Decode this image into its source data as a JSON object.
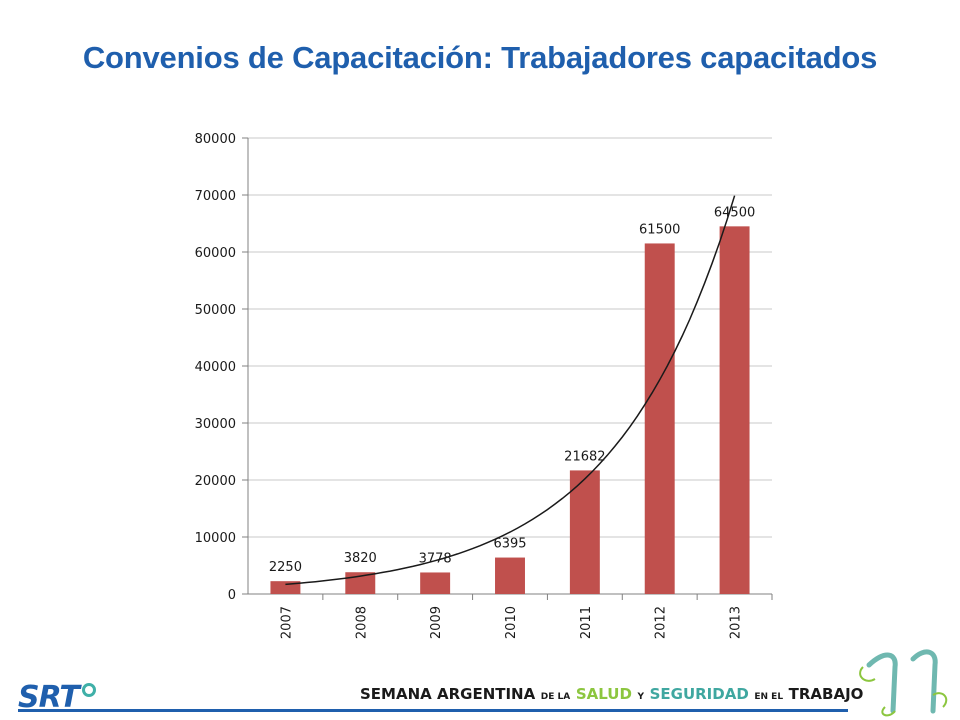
{
  "slide": {
    "title": "Convenios de Capacitación: Trabajadores capacitados"
  },
  "chart_data": {
    "type": "bar",
    "categories": [
      "2007",
      "2008",
      "2009",
      "2010",
      "2011",
      "2012",
      "2013"
    ],
    "values": [
      2250,
      3820,
      3778,
      6395,
      21682,
      61500,
      64500
    ],
    "data_labels": [
      "2250",
      "3820",
      "3778",
      "6395",
      "21682",
      "61500",
      "64500"
    ],
    "y_ticks": [
      "0",
      "10000",
      "20000",
      "30000",
      "40000",
      "50000",
      "60000",
      "70000",
      "80000"
    ],
    "ylim": [
      0,
      80000
    ],
    "trendline": "exponential",
    "grid": true,
    "legend": "none",
    "bar_color": "#c0504d",
    "title": "",
    "xlabel": "",
    "ylabel": ""
  },
  "footer": {
    "logo": "SRT",
    "banner": {
      "w1": "SEMANA ARGENTINA",
      "w2": "DE LA",
      "w3": "SALUD",
      "w4": "Y",
      "w5": "SEGURIDAD",
      "w6": "EN EL",
      "w7": "TRABAJO"
    },
    "edition": "11"
  },
  "colors": {
    "title": "#1f5fad",
    "bar": "#c0504d",
    "salud": "#8cc63f",
    "seguridad": "#3fa7a0"
  }
}
